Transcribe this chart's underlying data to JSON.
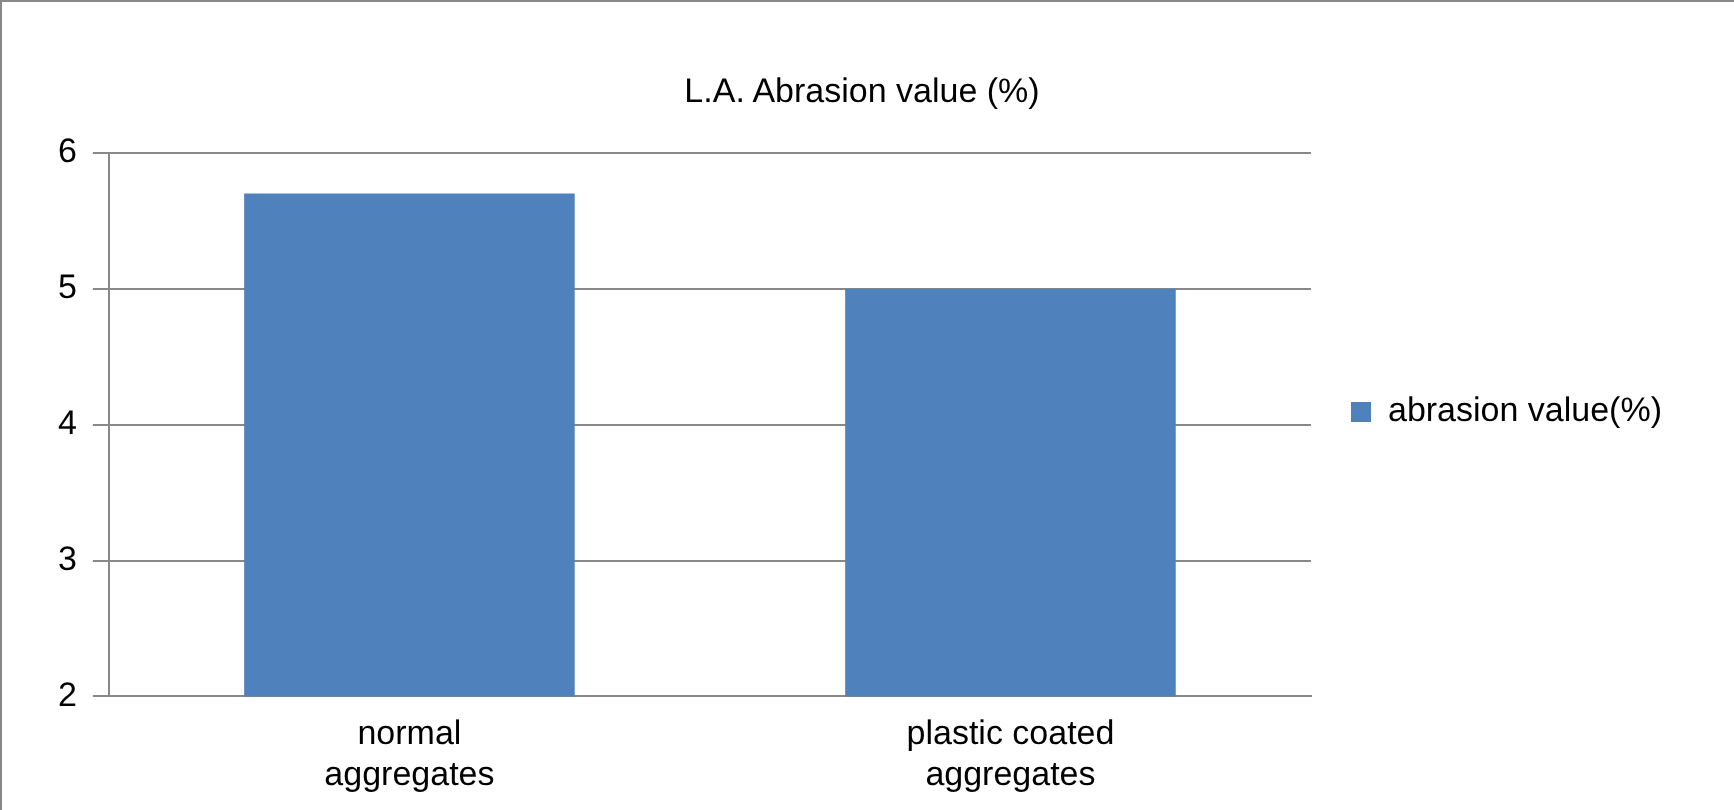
{
  "chart_data": {
    "type": "bar",
    "title": "L.A. Abrasion value (%)",
    "categories": [
      "normal aggregates",
      "plastic coated aggregates"
    ],
    "series": [
      {
        "name": "abrasion value(%)",
        "color": "#4f81bd",
        "values": [
          5.7,
          5.0
        ]
      }
    ],
    "ylim": [
      2,
      6
    ],
    "yticks": [
      2,
      3,
      4,
      5,
      6
    ],
    "grid": "y",
    "legend": "right"
  }
}
